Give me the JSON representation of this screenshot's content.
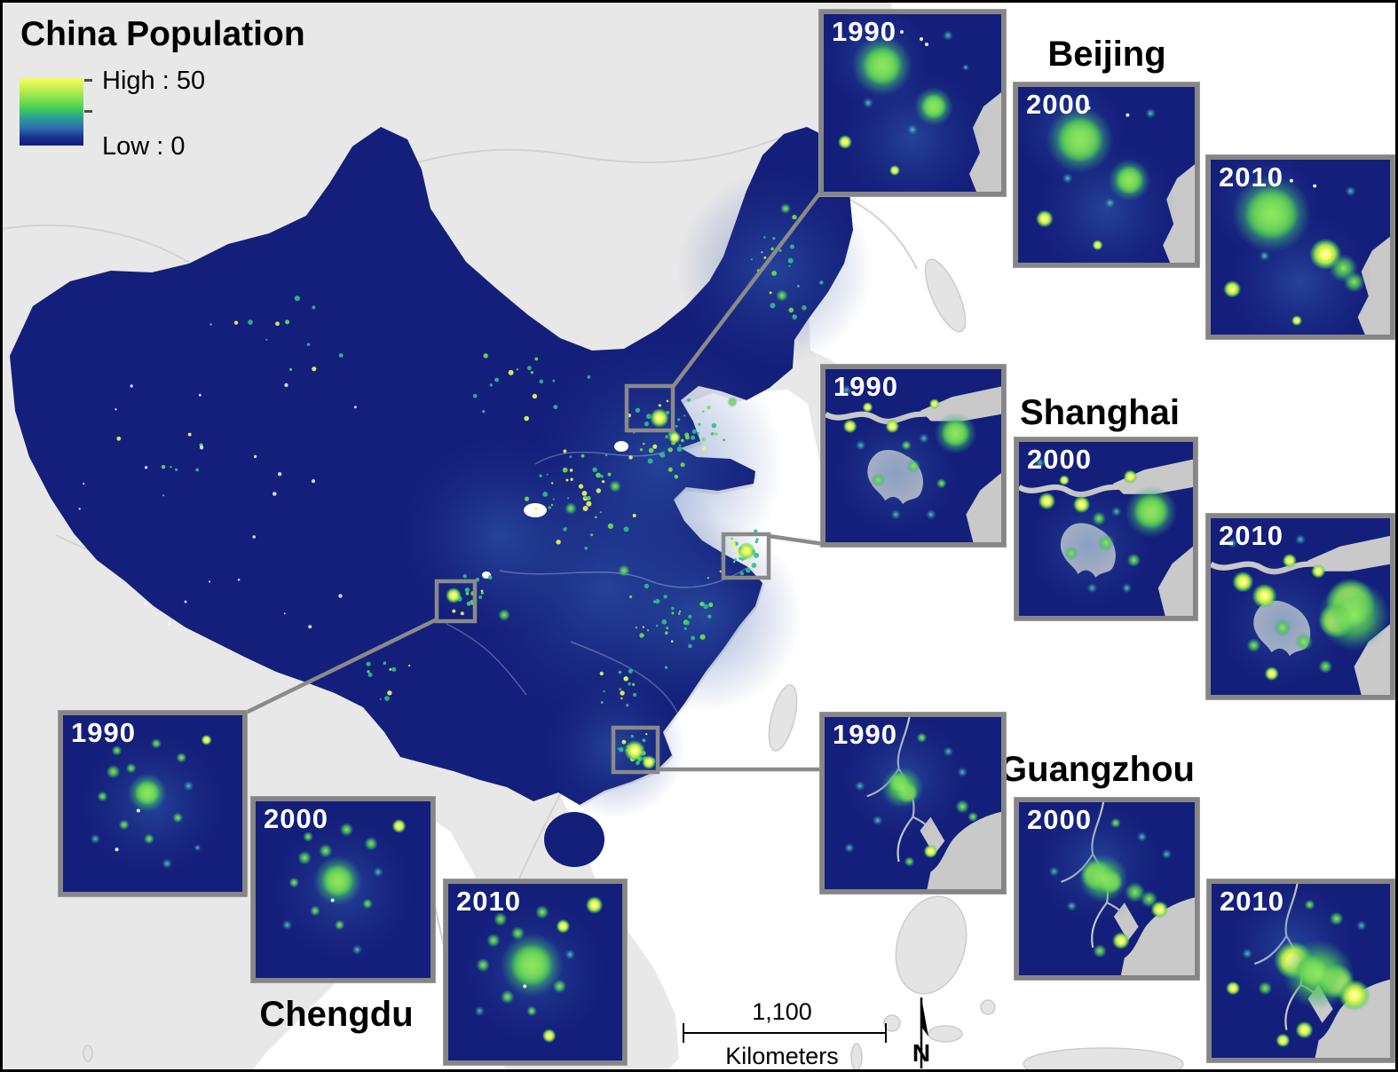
{
  "title": "China Population",
  "legend": {
    "high": "High : 50",
    "low": "Low : 0"
  },
  "cities": [
    {
      "name": "Beijing"
    },
    {
      "name": "Shanghai"
    },
    {
      "name": "Guangzhou"
    },
    {
      "name": "Chengdu"
    }
  ],
  "years": [
    "1990",
    "2000",
    "2010"
  ],
  "scalebar": {
    "distance": "1,100",
    "unit": "Kilometers"
  },
  "north_label": "N",
  "colors": {
    "ramp_high": "#f8fd5a",
    "ramp_low": "#131c7b",
    "china_fill": "#141f7b",
    "land": "#e8e8e8",
    "sea": "#ffffff",
    "frame_gray": "#8a8a8a"
  }
}
